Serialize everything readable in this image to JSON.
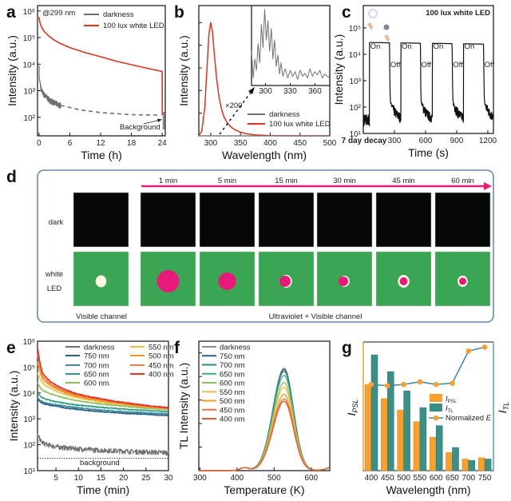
{
  "panel_letters": {
    "a": "a",
    "b": "b",
    "c": "c",
    "d": "d",
    "e": "e",
    "f": "f",
    "g": "g"
  },
  "colors": {
    "led": "#e0321e",
    "dark": "#707070",
    "magenta": "#e8197a",
    "green": "#3aa552",
    "tl_blue": "#3c7fa8",
    "psl_orange": "#f7a12a"
  },
  "chart_data": [
    {
      "id": "a",
      "type": "line",
      "xlabel": "Time (h)",
      "ylabel": "Intensity (a.u.)",
      "yscale": "log",
      "xlim": [
        -0.3,
        24.6
      ],
      "ylim": [
        20,
        1600000
      ],
      "xticks": [
        0,
        6,
        12,
        18,
        24
      ],
      "xtick_labels": [
        "0",
        "6",
        "12",
        "18",
        "24"
      ],
      "yticks": [
        100,
        1000,
        10000,
        100000,
        1000000
      ],
      "ytick_labels": [
        "10²",
        "10³",
        "10⁴",
        "10⁵",
        "10⁶"
      ],
      "annotation": "@299 nm",
      "background_label": "Background",
      "series": [
        {
          "name": "darkness",
          "color": "#707070",
          "noisy": true,
          "x": [
            0,
            0.05,
            0.2,
            0.5,
            1,
            2,
            3,
            4.2
          ],
          "y": [
            12000,
            3000,
            1800,
            1000,
            700,
            450,
            350,
            280
          ]
        },
        {
          "name": "darkness (extrapolated)",
          "legend": false,
          "color": "#707070",
          "dashed": true,
          "x": [
            4.2,
            8,
            12,
            18,
            24
          ],
          "y": [
            280,
            190,
            150,
            125,
            120
          ]
        },
        {
          "name": "100 lux white LED",
          "color": "#e0321e",
          "x": [
            0,
            0.1,
            0.3,
            0.6,
            1,
            2,
            3,
            4,
            6,
            9,
            12,
            15,
            18,
            21,
            24,
            24.02
          ],
          "y": [
            600000,
            420000,
            300000,
            220000,
            170000,
            110000,
            80000,
            62000,
            42000,
            27000,
            19000,
            13000,
            9500,
            7000,
            5300,
            120
          ]
        }
      ],
      "legend": [
        "darkness",
        "100 lux white LED"
      ]
    },
    {
      "id": "b",
      "type": "line",
      "xlabel": "Wavelength (nm)",
      "ylabel": "Intensity (a.u.)",
      "xlim": [
        280,
        500
      ],
      "ylim": [
        0,
        1.15
      ],
      "xticks": [
        300,
        350,
        400,
        450,
        500
      ],
      "xtick_labels": [
        "300",
        "350",
        "400",
        "450",
        "500"
      ],
      "yticks": [
        0.2,
        0.4,
        0.6,
        0.8,
        1.0
      ],
      "magnification_label": "×200",
      "series": [
        {
          "name": "100 lux white LED",
          "color": "#e0321e",
          "x": [
            280,
            285,
            290,
            294,
            297,
            300,
            303,
            306,
            310,
            314,
            318,
            322,
            326,
            330,
            335,
            340,
            350,
            360,
            375,
            400,
            450,
            500
          ],
          "y": [
            0,
            0.04,
            0.25,
            0.62,
            0.9,
            1.0,
            0.92,
            0.72,
            0.5,
            0.34,
            0.24,
            0.17,
            0.13,
            0.1,
            0.075,
            0.055,
            0.032,
            0.018,
            0.008,
            0.002,
            0,
            0
          ]
        },
        {
          "name": "darkness",
          "color": "#707070",
          "x": [
            280,
            500
          ],
          "y": [
            0,
            0
          ]
        }
      ],
      "legend": [
        "darkness",
        "100 lux white LED"
      ],
      "inset": {
        "xlim": [
          283,
          378
        ],
        "ylim": [
          0,
          1.05
        ],
        "xticks": [
          300,
          330,
          360
        ],
        "xtick_labels": [
          "300",
          "330",
          "360"
        ],
        "series": {
          "name": "darkness",
          "color": "#707070",
          "x": [
            283,
            285,
            287,
            289,
            291,
            293,
            295,
            297,
            299,
            301,
            303,
            305,
            307,
            309,
            311,
            313,
            315,
            317,
            319,
            321,
            324,
            327,
            330,
            333,
            336,
            339,
            342,
            345,
            348,
            351,
            354,
            357,
            360,
            363,
            366,
            369,
            372,
            375,
            378
          ],
          "y": [
            0.45,
            0.1,
            0.35,
            0.2,
            0.55,
            0.3,
            0.8,
            0.5,
            1.0,
            0.6,
            0.85,
            0.45,
            0.75,
            0.35,
            0.6,
            0.25,
            0.4,
            0.15,
            0.3,
            0.12,
            0.22,
            0.1,
            0.2,
            0.12,
            0.18,
            0.08,
            0.2,
            0.12,
            0.16,
            0.1,
            0.22,
            0.12,
            0.18,
            0.14,
            0.2,
            0.1,
            0.15,
            0.12,
            0.1
          ]
        }
      }
    },
    {
      "id": "c",
      "type": "line",
      "xlabel": "Time (s)",
      "ylabel": "Intensity (a.u.)",
      "yscale": "log",
      "xlim": [
        0,
        1254
      ],
      "ylim": [
        10,
        700000
      ],
      "xticks": [
        300,
        600,
        900,
        1200
      ],
      "xtick_labels": [
        "300",
        "600",
        "900",
        "1200"
      ],
      "x0_label": "7 day decay",
      "yticks": [
        10,
        100,
        1000,
        10000,
        100000
      ],
      "ytick_labels": [
        "10¹",
        "10²",
        "10³",
        "10⁴",
        "10⁵"
      ],
      "title": "100 lux white LED",
      "on_label": "On",
      "off_label": "Off",
      "on_intervals": [
        [
          59,
          253
        ],
        [
          362,
          550
        ],
        [
          666,
          856
        ],
        [
          966,
          1159
        ]
      ],
      "on_levels": [
        28000,
        27000,
        26000,
        25000
      ],
      "baseline": 35,
      "color": "#111111"
    },
    {
      "id": "e",
      "type": "line",
      "xlabel": "Time (min)",
      "ylabel": "Intensity (a.u.)",
      "yscale": "log",
      "xlim": [
        0.9,
        30
      ],
      "ylim": [
        10,
        1000000
      ],
      "xticks": [
        5,
        10,
        15,
        20,
        25,
        30
      ],
      "xtick_labels": [
        "5",
        "10",
        "15",
        "20",
        "25",
        "30"
      ],
      "yticks": [
        10,
        100,
        1000,
        10000,
        100000,
        1000000
      ],
      "ytick_labels": [
        "10¹",
        "10²",
        "10³",
        "10⁴",
        "10⁵",
        "10⁶"
      ],
      "background_label": "background",
      "background_level": 30,
      "x": [
        0.9,
        2,
        5,
        10,
        15,
        20,
        25,
        30
      ],
      "series": [
        {
          "name": "darkness",
          "color": "#707070",
          "noisy": true,
          "y": [
            250,
            120,
            85,
            70,
            62,
            57,
            53,
            50
          ]
        },
        {
          "name": "750 nm",
          "color": "#2a5f8a",
          "y": [
            6000,
            4000,
            3100,
            2300,
            1900,
            1650,
            1500,
            1350
          ]
        },
        {
          "name": "700 nm",
          "color": "#3d8a99",
          "y": [
            6500,
            4500,
            3500,
            2700,
            2200,
            1900,
            1700,
            1550
          ]
        },
        {
          "name": "650 nm",
          "color": "#2e9e80",
          "y": [
            10000,
            6500,
            4600,
            3400,
            2800,
            2400,
            2100,
            1900
          ]
        },
        {
          "name": "600 nm",
          "color": "#8dc05a",
          "y": [
            25000,
            13000,
            8000,
            5000,
            3800,
            3100,
            2600,
            2300
          ]
        },
        {
          "name": "550 nm",
          "color": "#f0c040",
          "y": [
            60000,
            25000,
            12000,
            6500,
            4500,
            3500,
            2900,
            2500
          ]
        },
        {
          "name": "500 nm",
          "color": "#f59a20",
          "y": [
            160000,
            35000,
            15000,
            7200,
            5000,
            3800,
            3000,
            2600
          ]
        },
        {
          "name": "450 nm",
          "color": "#e8804a",
          "y": [
            350000,
            45000,
            17000,
            8000,
            5500,
            4000,
            3100,
            2600
          ]
        },
        {
          "name": "400 nm",
          "color": "#e83020",
          "y": [
            600000,
            60000,
            20000,
            9000,
            6000,
            4300,
            3300,
            2700
          ]
        }
      ]
    },
    {
      "id": "f",
      "type": "line",
      "xlabel": "Temperature (K)",
      "ylabel": "TL Intensity (a.u.)",
      "xlim": [
        297,
        650
      ],
      "ylim": [
        0,
        1.1
      ],
      "xticks": [
        300,
        400,
        500,
        600
      ],
      "xtick_labels": [
        "300",
        "400",
        "500",
        "600"
      ],
      "yticks": [
        0.2,
        0.4,
        0.6,
        0.8,
        1.0
      ],
      "peak_temperature_K": 527,
      "minor_peak_temperature_K": 420,
      "series": [
        {
          "name": "darkness",
          "color": "#8a8a8a",
          "peak": 0.87
        },
        {
          "name": "750 nm",
          "color": "#2a5f8a",
          "peak": 0.86
        },
        {
          "name": "700 nm",
          "color": "#2e8a86",
          "peak": 0.845
        },
        {
          "name": "650 nm",
          "color": "#3fae8e",
          "peak": 0.81
        },
        {
          "name": "600 nm",
          "color": "#8dc05a",
          "peak": 0.75
        },
        {
          "name": "550 nm",
          "color": "#f0c040",
          "peak": 0.71
        },
        {
          "name": "500 nm",
          "color": "#f59a20",
          "peak": 0.65
        },
        {
          "name": "450 nm",
          "color": "#ee7040",
          "peak": 0.61
        },
        {
          "name": "400 nm",
          "color": "#e05a30",
          "peak": 0.59
        }
      ]
    },
    {
      "id": "g",
      "type": "bar",
      "xlabel": "Wavelength (nm)",
      "ylabel_left": "I",
      "ylabel_left_sub": "PSL",
      "ylabel_right": "I",
      "ylabel_right_sub": "TL",
      "categories": [
        "400",
        "450",
        "500",
        "550",
        "600",
        "650",
        "700",
        "750"
      ],
      "ylim": [
        0,
        1
      ],
      "series": [
        {
          "name": "I",
          "sub": "PSL",
          "color": "#f7a12a",
          "values": [
            0.67,
            0.56,
            0.47,
            0.38,
            0.26,
            0.14,
            0.09,
            0.1
          ]
        },
        {
          "name": "I",
          "sub": "TL",
          "color": "#3a8f86",
          "values": [
            0.9,
            0.77,
            0.62,
            0.49,
            0.35,
            0.18,
            0.08,
            0.09
          ]
        },
        {
          "name": "Normalized ",
          "name_italic": "E",
          "type": "line",
          "color": "#3a86a8",
          "marker_color": "#f7a12a",
          "values": [
            0.67,
            0.66,
            0.67,
            0.69,
            0.67,
            0.68,
            0.93,
            0.96
          ]
        }
      ]
    }
  ],
  "panel_d": {
    "times": [
      "1 min",
      "5 min",
      "15 min",
      "30 min",
      "45 min",
      "60 min"
    ],
    "row_dark": "dark",
    "row_led_1": "white",
    "row_led_2": "LED",
    "visible_channel": "Visible channel",
    "uv_visible_channel": "Ultraviolet + Visible channel"
  }
}
